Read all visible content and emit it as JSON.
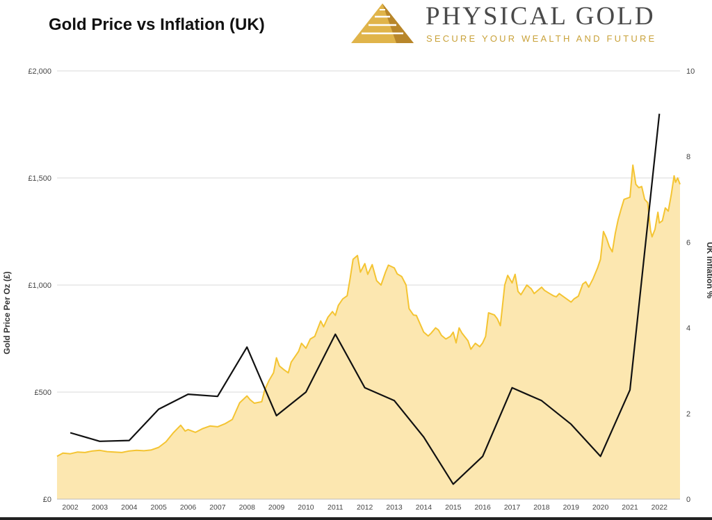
{
  "chart_data": {
    "type": "area",
    "title": "Gold Price vs Inflation (UK)",
    "y_left_label": "Gold Price Per Oz (£)",
    "y_right_label": "UK Inflation %",
    "y_left_ticks": [
      "£0",
      "£500",
      "£1,000",
      "£1,500",
      "£2,000"
    ],
    "y_left_range": [
      0,
      2000
    ],
    "y_right_ticks": [
      "0",
      "2",
      "4",
      "6",
      "8",
      "10"
    ],
    "y_right_range": [
      0,
      10
    ],
    "x_range": [
      2001.55,
      2022.7
    ],
    "x_ticks": [
      "2002",
      "2003",
      "2004",
      "2005",
      "2006",
      "2007",
      "2008",
      "2009",
      "2010",
      "2011",
      "2012",
      "2013",
      "2014",
      "2015",
      "2016",
      "2017",
      "2018",
      "2019",
      "2020",
      "2021",
      "2022"
    ],
    "grid": true,
    "series": [
      {
        "name": "Gold Price Per Oz (£)",
        "type": "area",
        "axis": "left",
        "color": "#f4c432",
        "fill": "#fce7b0",
        "points": [
          [
            2001.55,
            200
          ],
          [
            2001.75,
            215
          ],
          [
            2002.0,
            212
          ],
          [
            2002.25,
            220
          ],
          [
            2002.5,
            218
          ],
          [
            2002.75,
            225
          ],
          [
            2003.0,
            228
          ],
          [
            2003.25,
            222
          ],
          [
            2003.5,
            220
          ],
          [
            2003.75,
            218
          ],
          [
            2004.0,
            225
          ],
          [
            2004.25,
            228
          ],
          [
            2004.5,
            226
          ],
          [
            2004.75,
            230
          ],
          [
            2005.0,
            242
          ],
          [
            2005.25,
            268
          ],
          [
            2005.5,
            310
          ],
          [
            2005.75,
            345
          ],
          [
            2005.9,
            318
          ],
          [
            2006.0,
            325
          ],
          [
            2006.25,
            312
          ],
          [
            2006.5,
            330
          ],
          [
            2006.75,
            342
          ],
          [
            2007.0,
            338
          ],
          [
            2007.25,
            352
          ],
          [
            2007.5,
            372
          ],
          [
            2007.75,
            450
          ],
          [
            2008.0,
            482
          ],
          [
            2008.1,
            465
          ],
          [
            2008.25,
            448
          ],
          [
            2008.5,
            455
          ],
          [
            2008.6,
            510
          ],
          [
            2008.75,
            555
          ],
          [
            2008.9,
            590
          ],
          [
            2009.0,
            660
          ],
          [
            2009.1,
            622
          ],
          [
            2009.25,
            605
          ],
          [
            2009.4,
            590
          ],
          [
            2009.5,
            640
          ],
          [
            2009.75,
            690
          ],
          [
            2009.85,
            728
          ],
          [
            2010.0,
            705
          ],
          [
            2010.15,
            748
          ],
          [
            2010.3,
            760
          ],
          [
            2010.5,
            832
          ],
          [
            2010.6,
            805
          ],
          [
            2010.75,
            850
          ],
          [
            2010.9,
            876
          ],
          [
            2011.0,
            858
          ],
          [
            2011.1,
            905
          ],
          [
            2011.25,
            935
          ],
          [
            2011.4,
            950
          ],
          [
            2011.5,
            1030
          ],
          [
            2011.6,
            1120
          ],
          [
            2011.75,
            1138
          ],
          [
            2011.85,
            1060
          ],
          [
            2012.0,
            1100
          ],
          [
            2012.1,
            1050
          ],
          [
            2012.25,
            1095
          ],
          [
            2012.4,
            1020
          ],
          [
            2012.55,
            1000
          ],
          [
            2012.7,
            1060
          ],
          [
            2012.8,
            1093
          ],
          [
            2013.0,
            1080
          ],
          [
            2013.1,
            1052
          ],
          [
            2013.25,
            1040
          ],
          [
            2013.4,
            1000
          ],
          [
            2013.5,
            890
          ],
          [
            2013.65,
            860
          ],
          [
            2013.75,
            858
          ],
          [
            2014.0,
            780
          ],
          [
            2014.15,
            762
          ],
          [
            2014.25,
            775
          ],
          [
            2014.4,
            800
          ],
          [
            2014.5,
            790
          ],
          [
            2014.6,
            765
          ],
          [
            2014.75,
            748
          ],
          [
            2014.9,
            760
          ],
          [
            2015.0,
            780
          ],
          [
            2015.1,
            730
          ],
          [
            2015.2,
            800
          ],
          [
            2015.3,
            775
          ],
          [
            2015.5,
            740
          ],
          [
            2015.6,
            700
          ],
          [
            2015.75,
            728
          ],
          [
            2015.9,
            712
          ],
          [
            2016.0,
            730
          ],
          [
            2016.1,
            760
          ],
          [
            2016.2,
            870
          ],
          [
            2016.4,
            860
          ],
          [
            2016.5,
            842
          ],
          [
            2016.6,
            810
          ],
          [
            2016.75,
            1000
          ],
          [
            2016.85,
            1045
          ],
          [
            2017.0,
            1010
          ],
          [
            2017.1,
            1050
          ],
          [
            2017.2,
            970
          ],
          [
            2017.3,
            955
          ],
          [
            2017.5,
            1000
          ],
          [
            2017.65,
            982
          ],
          [
            2017.75,
            960
          ],
          [
            2018.0,
            990
          ],
          [
            2018.1,
            975
          ],
          [
            2018.25,
            962
          ],
          [
            2018.4,
            950
          ],
          [
            2018.5,
            945
          ],
          [
            2018.6,
            960
          ],
          [
            2018.75,
            945
          ],
          [
            2019.0,
            920
          ],
          [
            2019.1,
            935
          ],
          [
            2019.25,
            948
          ],
          [
            2019.4,
            1005
          ],
          [
            2019.5,
            1015
          ],
          [
            2019.6,
            990
          ],
          [
            2019.75,
            1030
          ],
          [
            2019.9,
            1080
          ],
          [
            2020.0,
            1120
          ],
          [
            2020.1,
            1250
          ],
          [
            2020.2,
            1220
          ],
          [
            2020.3,
            1180
          ],
          [
            2020.4,
            1155
          ],
          [
            2020.5,
            1240
          ],
          [
            2020.6,
            1305
          ],
          [
            2020.7,
            1355
          ],
          [
            2020.8,
            1400
          ],
          [
            2021.0,
            1410
          ],
          [
            2021.1,
            1560
          ],
          [
            2021.2,
            1470
          ],
          [
            2021.3,
            1455
          ],
          [
            2021.4,
            1460
          ],
          [
            2021.5,
            1400
          ],
          [
            2021.6,
            1385
          ],
          [
            2021.7,
            1255
          ],
          [
            2021.75,
            1225
          ],
          [
            2021.85,
            1260
          ],
          [
            2021.95,
            1340
          ],
          [
            2022.0,
            1290
          ],
          [
            2022.1,
            1300
          ],
          [
            2022.2,
            1360
          ],
          [
            2022.3,
            1345
          ],
          [
            2022.4,
            1420
          ],
          [
            2022.5,
            1510
          ],
          [
            2022.55,
            1480
          ],
          [
            2022.62,
            1500
          ],
          [
            2022.7,
            1470
          ]
        ]
      },
      {
        "name": "UK Inflation %",
        "type": "line",
        "axis": "right",
        "color": "#111111",
        "points": [
          [
            2002,
            1.55
          ],
          [
            2003,
            1.35
          ],
          [
            2004,
            1.37
          ],
          [
            2005,
            2.1
          ],
          [
            2006,
            2.45
          ],
          [
            2007,
            2.4
          ],
          [
            2008,
            3.55
          ],
          [
            2009,
            1.95
          ],
          [
            2010,
            2.5
          ],
          [
            2011,
            3.85
          ],
          [
            2012,
            2.6
          ],
          [
            2013,
            2.3
          ],
          [
            2014,
            1.45
          ],
          [
            2015,
            0.35
          ],
          [
            2016,
            1.0
          ],
          [
            2017,
            2.6
          ],
          [
            2018,
            2.3
          ],
          [
            2019,
            1.75
          ],
          [
            2020,
            1.0
          ],
          [
            2021,
            2.55
          ],
          [
            2022,
            9.0
          ]
        ]
      }
    ]
  },
  "logo": {
    "brand_name": "PHYSICAL GOLD",
    "tagline": "SECURE YOUR WEALTH AND FUTURE"
  }
}
